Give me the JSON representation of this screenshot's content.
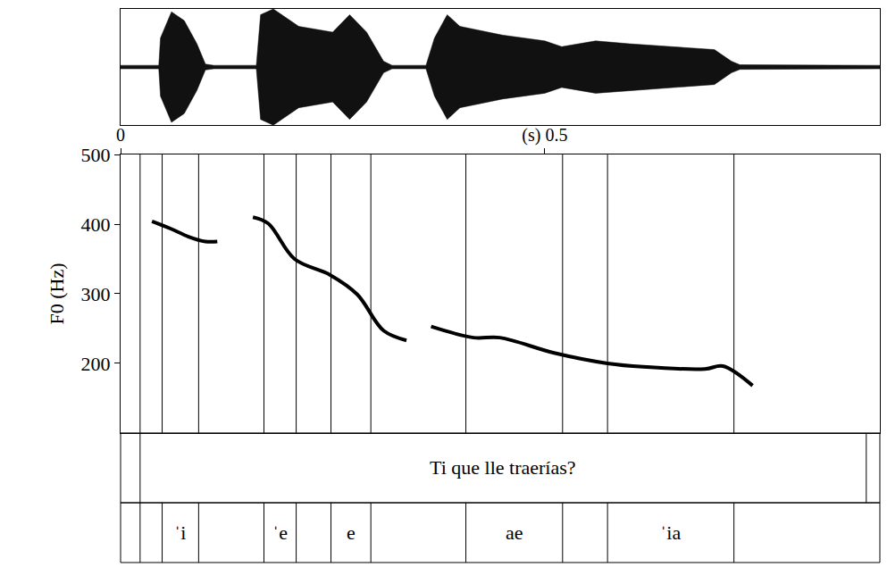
{
  "chart_data": {
    "type": "line",
    "y_label": "F0 (Hz)",
    "xlim": [
      0,
      0.895
    ],
    "xticks": [
      0,
      {
        "value": 0.5,
        "label": "(s) 0.5"
      }
    ],
    "ylim": [
      100,
      500
    ],
    "yticks": [
      200,
      300,
      400,
      500
    ],
    "grid": false,
    "color": "#000000",
    "x": [
      0.037,
      0.06,
      0.08,
      0.1,
      0.114,
      0.135,
      0.156,
      0.174,
      0.205,
      0.247,
      0.279,
      0.31,
      0.337,
      0.35,
      0.366,
      0.416,
      0.447,
      0.511,
      0.574,
      0.616,
      0.689,
      0.71,
      0.745
    ],
    "values": [
      404,
      393,
      382,
      375,
      375,
      null,
      410,
      401,
      350,
      327,
      299,
      247,
      233,
      null,
      253,
      237,
      237,
      215,
      200,
      195,
      192,
      196,
      168
    ],
    "waveform": {
      "x": [
        0,
        0.045,
        0.047,
        0.06,
        0.075,
        0.09,
        0.1,
        0.11,
        0.16,
        0.165,
        0.18,
        0.21,
        0.25,
        0.27,
        0.29,
        0.31,
        0.32,
        0.36,
        0.37,
        0.385,
        0.4,
        0.45,
        0.5,
        0.52,
        0.56,
        0.6,
        0.65,
        0.7,
        0.72,
        0.73,
        0.895
      ],
      "envelope": [
        0.03,
        0.03,
        0.5,
        0.95,
        0.8,
        0.4,
        0.05,
        0.03,
        0.03,
        0.9,
        1.0,
        0.7,
        0.6,
        0.9,
        0.6,
        0.1,
        0.03,
        0.03,
        0.5,
        0.9,
        0.7,
        0.55,
        0.45,
        0.35,
        0.45,
        0.4,
        0.35,
        0.3,
        0.1,
        0.04,
        0.03
      ],
      "ylim": [
        -1,
        1
      ]
    },
    "text_tier": {
      "boundaries": [
        0.023,
        0.879
      ],
      "labels": [
        "Ti que lle traerías?"
      ]
    },
    "phone_tier": {
      "boundaries": [
        0.023,
        0.049,
        0.092,
        0.169,
        0.207,
        0.248,
        0.295,
        0.407,
        0.521,
        0.574,
        0.723
      ],
      "labels": [
        null,
        "ˈi",
        null,
        "ˈe",
        null,
        "e",
        null,
        "ae",
        null,
        "ˈia"
      ]
    }
  }
}
